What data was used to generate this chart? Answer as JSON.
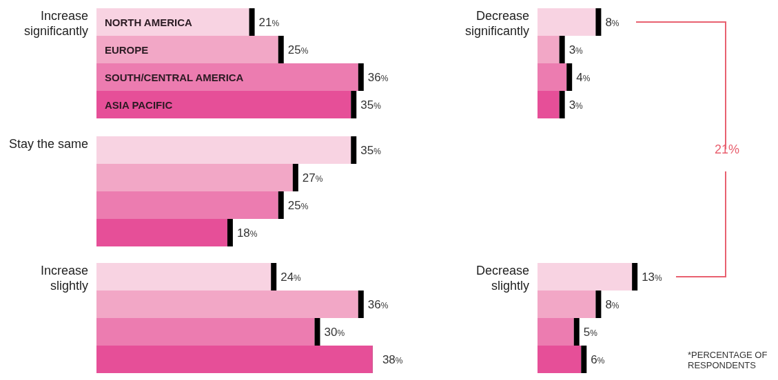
{
  "chart_data": [
    {
      "type": "bar",
      "orientation": "horizontal",
      "title": "Increase significantly",
      "categories": [
        "NORTH AMERICA",
        "EUROPE",
        "SOUTH/CENTRAL AMERICA",
        "ASIA PACIFIC"
      ],
      "values": [
        21,
        25,
        36,
        35
      ],
      "colors": [
        "#f8d3e2",
        "#f2a7c6",
        "#ec7cb0",
        "#e64f98"
      ],
      "value_labels": [
        "21%",
        "25%",
        "36%",
        "35%"
      ]
    },
    {
      "type": "bar",
      "orientation": "horizontal",
      "title": "Stay the same",
      "categories": [
        null,
        null,
        null,
        null
      ],
      "values": [
        35,
        27,
        25,
        18
      ],
      "colors": [
        "#f8d3e2",
        "#f2a7c6",
        "#ec7cb0",
        "#e64f98"
      ],
      "value_labels": [
        "35%",
        "27%",
        "25%",
        "18%"
      ]
    },
    {
      "type": "bar",
      "orientation": "horizontal",
      "title": "Increase slightly",
      "categories": [
        null,
        null,
        null,
        null
      ],
      "values": [
        24,
        36,
        30,
        38
      ],
      "colors": [
        "#f8d3e2",
        "#f2a7c6",
        "#ec7cb0",
        "#e64f98"
      ],
      "value_labels": [
        "24%",
        "36%",
        "30%",
        "38%"
      ]
    },
    {
      "type": "bar",
      "orientation": "horizontal",
      "title": "Decrease significantly",
      "categories": [
        null,
        null,
        null,
        null
      ],
      "values": [
        8,
        3,
        4,
        3
      ],
      "colors": [
        "#f8d3e2",
        "#f2a7c6",
        "#ec7cb0",
        "#e64f98"
      ],
      "value_labels": [
        "8%",
        "3%",
        "4%",
        "3%"
      ],
      "annotations": [
        "21%"
      ]
    },
    {
      "type": "bar",
      "orientation": "horizontal",
      "title": "Decrease slightly",
      "categories": [
        null,
        null,
        null,
        null
      ],
      "values": [
        13,
        8,
        5,
        6
      ],
      "colors": [
        "#f8d3e2",
        "#f2a7c6",
        "#ec7cb0",
        "#e64f98"
      ],
      "value_labels": [
        "13%",
        "8%",
        "5%",
        "6%"
      ],
      "annotations": [
        "*PERCENTAGE OF RESPONDENTS"
      ]
    }
  ]
}
